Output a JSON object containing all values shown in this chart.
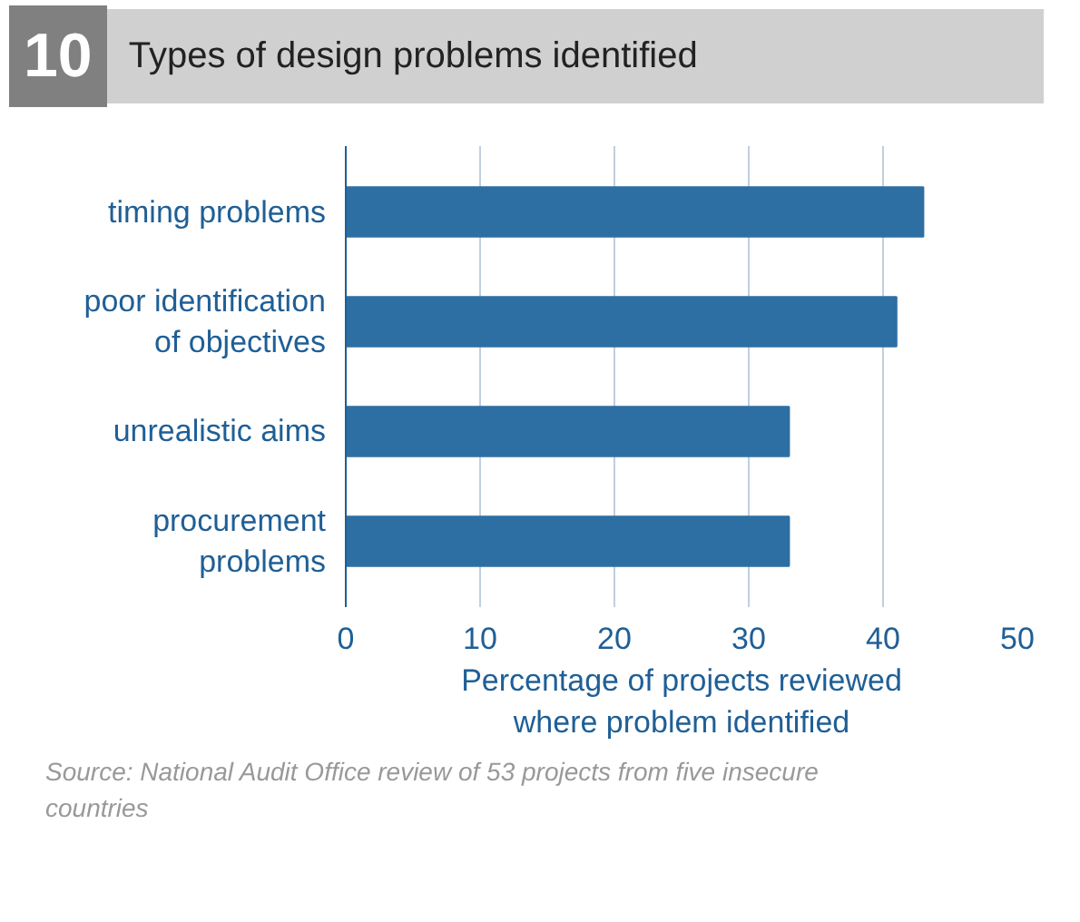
{
  "chart_data": {
    "type": "bar",
    "orientation": "horizontal",
    "title": "Types of design problems identified",
    "categories": [
      "timing problems",
      "poor identification of objectives",
      "unrealistic aims",
      "procurement problems"
    ],
    "values": [
      43,
      41,
      33,
      33
    ],
    "color": "#2e6fa3",
    "xlim": [
      0,
      50
    ],
    "xticks": [
      0,
      10,
      20,
      30,
      40,
      50
    ],
    "grid": "x",
    "xlabel": "Percentage of projects reviewed where problem identified",
    "annotations": [
      "10",
      "Source: National Audit Office review of 53 projects from five insecure countries"
    ]
  }
}
